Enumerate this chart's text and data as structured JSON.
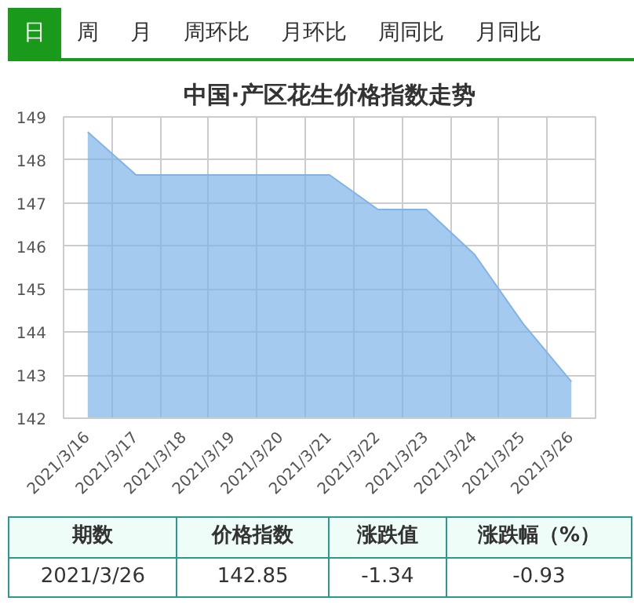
{
  "chart_data": {
    "type": "area",
    "title": "中国·产区花生价格指数走势",
    "categories": [
      "2021/3/16",
      "2021/3/17",
      "2021/3/18",
      "2021/3/19",
      "2021/3/20",
      "2021/3/21",
      "2021/3/22",
      "2021/3/23",
      "2021/3/24",
      "2021/3/25",
      "2021/3/26"
    ],
    "values": [
      148.65,
      147.65,
      147.65,
      147.65,
      147.65,
      147.65,
      146.85,
      146.85,
      145.8,
      144.2,
      142.85
    ],
    "color": "#7fb4ea",
    "ylim": [
      142,
      149
    ],
    "yticks": [
      142,
      143,
      144,
      145,
      146,
      147,
      148,
      149
    ],
    "grid": true,
    "annotations": [
      "日",
      "周",
      "月",
      "周环比",
      "月环比",
      "周同比",
      "月同比",
      "期数",
      "价格指数",
      "涨跌值",
      "涨跌幅（%）",
      "2021/3/26",
      "142.85",
      "-1.34",
      "-0.93"
    ]
  }
}
